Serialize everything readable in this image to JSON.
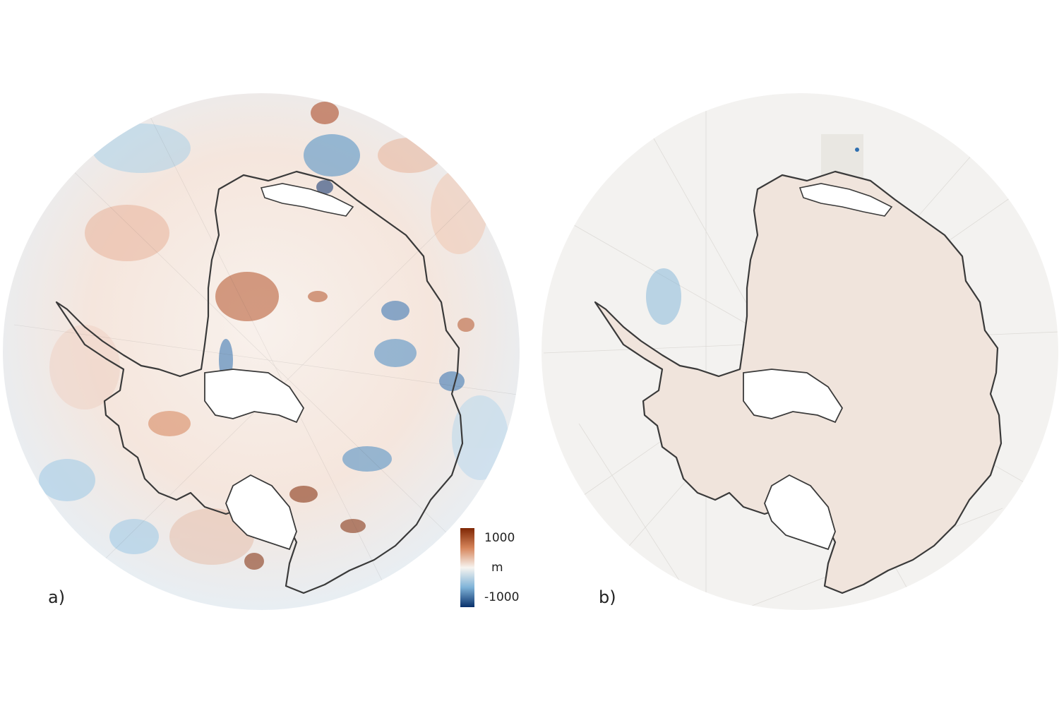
{
  "panels": [
    {
      "label": "a)"
    },
    {
      "label": "b)"
    }
  ],
  "legend": {
    "max_label": "1000",
    "unit": "m",
    "min_label": "-1000",
    "colors": {
      "high": "#7f2704",
      "mid": "#f7f4f0",
      "low": "#08306b"
    }
  },
  "colors": {
    "coastline": "#3a3a3a",
    "panel_a_background": "#f6ebe4",
    "panel_b_background": "#efedea",
    "positive": "#b5532a",
    "negative": "#2f6fb0"
  }
}
